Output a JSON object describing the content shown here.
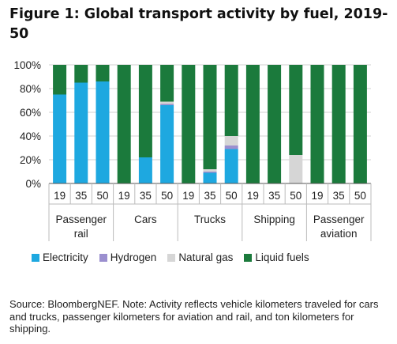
{
  "title": "Figure 1: Global transport activity by fuel, 2019-50",
  "note": "Source: BloombergNEF. Note: Activity reflects vehicle kilometers traveled for cars and trucks, passenger kilometers for aviation and rail, and ton kilometers for shipping.",
  "chart_data": {
    "type": "bar",
    "stacked": true,
    "title": "Figure 1: Global transport activity by fuel, 2019-50",
    "xlabel": "",
    "ylabel": "",
    "ylim": [
      0,
      100
    ],
    "yticks": [
      "0%",
      "20%",
      "40%",
      "60%",
      "80%",
      "100%"
    ],
    "grid": true,
    "legend": "bottom",
    "groups": [
      {
        "name": "Passenger rail",
        "lines": [
          "Passenger",
          "rail"
        ]
      },
      {
        "name": "Cars",
        "lines": [
          "Cars"
        ]
      },
      {
        "name": "Trucks",
        "lines": [
          "Trucks"
        ]
      },
      {
        "name": "Shipping",
        "lines": [
          "Shipping"
        ]
      },
      {
        "name": "Passenger aviation",
        "lines": [
          "Passenger",
          "aviation"
        ]
      }
    ],
    "categories": [
      "19",
      "35",
      "50",
      "19",
      "35",
      "50",
      "19",
      "35",
      "50",
      "19",
      "35",
      "50",
      "19",
      "35",
      "50"
    ],
    "series": [
      {
        "name": "Electricity",
        "color": "#1ea8e0",
        "values": [
          75,
          85,
          86,
          0,
          22,
          66,
          0,
          9,
          29,
          0,
          0,
          0,
          0,
          0,
          0
        ]
      },
      {
        "name": "Hydrogen",
        "color": "#9b8fcf",
        "values": [
          0,
          0,
          0,
          0,
          0,
          1,
          0,
          1,
          3,
          0,
          0,
          0,
          0,
          0,
          0
        ]
      },
      {
        "name": "Natural gas",
        "color": "#d6d6d6",
        "values": [
          0,
          0,
          0,
          0,
          0,
          2,
          0,
          2,
          8,
          0,
          0,
          24,
          0,
          0,
          0
        ]
      },
      {
        "name": "Liquid fuels",
        "color": "#1b7a3c",
        "values": [
          25,
          15,
          14,
          100,
          78,
          31,
          100,
          88,
          60,
          100,
          100,
          76,
          100,
          100,
          100
        ]
      }
    ]
  }
}
